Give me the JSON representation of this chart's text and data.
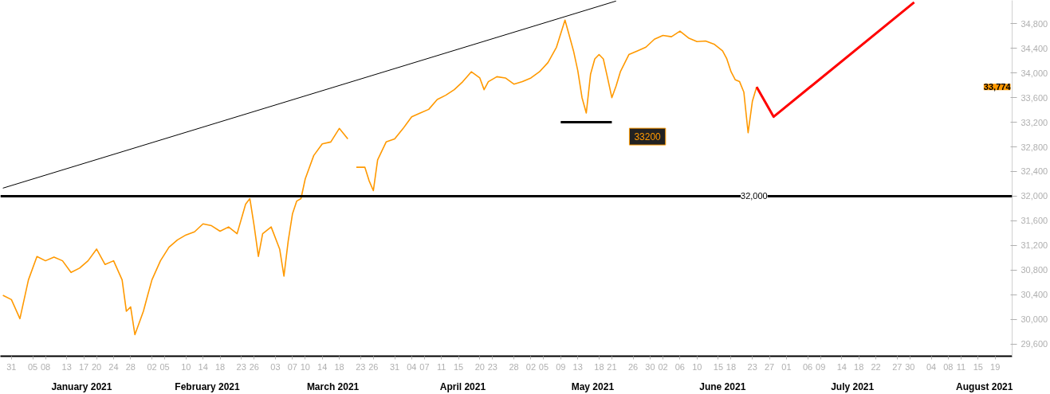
{
  "chart_data": {
    "type": "line",
    "xlim": [
      "2020-12-28T10:00",
      "2021-08-23T00:00"
    ],
    "ylim": [
      29400,
      35180
    ],
    "yticks": [
      {
        "value": 29600,
        "label": "29,600"
      },
      {
        "value": 30000,
        "label": "30,000"
      },
      {
        "value": 30400,
        "label": "30,400"
      },
      {
        "value": 30800,
        "label": "30,800"
      },
      {
        "value": 31200,
        "label": "31,200"
      },
      {
        "value": 31600,
        "label": "31,600"
      },
      {
        "value": 32000,
        "label": "32,000"
      },
      {
        "value": 32400,
        "label": "32,400"
      },
      {
        "value": 32800,
        "label": "32,800"
      },
      {
        "value": 33200,
        "label": "33,200"
      },
      {
        "value": 33600,
        "label": "33,600"
      },
      {
        "value": 34000,
        "label": "34,000"
      },
      {
        "value": 34400,
        "label": "34,400"
      },
      {
        "value": 34800,
        "label": "34,800"
      }
    ],
    "xticks": [
      {
        "value": "2020-12-31",
        "label": "31"
      },
      {
        "value": "2021-01-05",
        "label": "05"
      },
      {
        "value": "2021-01-08",
        "label": "08"
      },
      {
        "value": "2021-01-13",
        "label": "13"
      },
      {
        "value": "2021-01-17",
        "label": "17"
      },
      {
        "value": "2021-01-20",
        "label": "20"
      },
      {
        "value": "2021-01-24",
        "label": "24"
      },
      {
        "value": "2021-01-28",
        "label": "28"
      },
      {
        "value": "2021-02-02",
        "label": "02"
      },
      {
        "value": "2021-02-05",
        "label": "05"
      },
      {
        "value": "2021-02-10",
        "label": "10"
      },
      {
        "value": "2021-02-14",
        "label": "14"
      },
      {
        "value": "2021-02-18",
        "label": "18"
      },
      {
        "value": "2021-02-23",
        "label": "23"
      },
      {
        "value": "2021-02-26",
        "label": "26"
      },
      {
        "value": "2021-03-03",
        "label": "03"
      },
      {
        "value": "2021-03-07",
        "label": "07"
      },
      {
        "value": "2021-03-10",
        "label": "10"
      },
      {
        "value": "2021-03-14",
        "label": "14"
      },
      {
        "value": "2021-03-18",
        "label": "18"
      },
      {
        "value": "2021-03-23",
        "label": "23"
      },
      {
        "value": "2021-03-26",
        "label": "26"
      },
      {
        "value": "2021-03-31",
        "label": "31"
      },
      {
        "value": "2021-04-04",
        "label": "04"
      },
      {
        "value": "2021-04-07",
        "label": "07"
      },
      {
        "value": "2021-04-11",
        "label": "11"
      },
      {
        "value": "2021-04-15",
        "label": "15"
      },
      {
        "value": "2021-04-20",
        "label": "20"
      },
      {
        "value": "2021-04-23",
        "label": "23"
      },
      {
        "value": "2021-04-28",
        "label": "28"
      },
      {
        "value": "2021-05-02",
        "label": "02"
      },
      {
        "value": "2021-05-05",
        "label": "05"
      },
      {
        "value": "2021-05-09",
        "label": "09"
      },
      {
        "value": "2021-05-13",
        "label": "13"
      },
      {
        "value": "2021-05-18",
        "label": "18"
      },
      {
        "value": "2021-05-21",
        "label": "21"
      },
      {
        "value": "2021-05-26",
        "label": "26"
      },
      {
        "value": "2021-05-30",
        "label": "30"
      },
      {
        "value": "2021-06-02",
        "label": "02"
      },
      {
        "value": "2021-06-06",
        "label": "06"
      },
      {
        "value": "2021-06-10",
        "label": "10"
      },
      {
        "value": "2021-06-15",
        "label": "15"
      },
      {
        "value": "2021-06-18",
        "label": "18"
      },
      {
        "value": "2021-06-23",
        "label": "23"
      },
      {
        "value": "2021-06-27",
        "label": "27"
      },
      {
        "value": "2021-07-01",
        "label": "01"
      },
      {
        "value": "2021-07-06",
        "label": "06"
      },
      {
        "value": "2021-07-09",
        "label": "09"
      },
      {
        "value": "2021-07-14",
        "label": "14"
      },
      {
        "value": "2021-07-18",
        "label": "18"
      },
      {
        "value": "2021-07-22",
        "label": "22"
      },
      {
        "value": "2021-07-27",
        "label": "27"
      },
      {
        "value": "2021-07-30",
        "label": "30"
      },
      {
        "value": "2021-08-04",
        "label": "04"
      },
      {
        "value": "2021-08-08",
        "label": "08"
      },
      {
        "value": "2021-08-11",
        "label": "11"
      },
      {
        "value": "2021-08-15",
        "label": "15"
      },
      {
        "value": "2021-08-19",
        "label": "19"
      }
    ],
    "series": [
      {
        "color": "#ff9900",
        "x": [
          "2020-12-29",
          "2020-12-31",
          "2021-01-02",
          "2021-01-04",
          "2021-01-06",
          "2021-01-08",
          "2021-01-10",
          "2021-01-12",
          "2021-01-14",
          "2021-01-16",
          "2021-01-18",
          "2021-01-20",
          "2021-01-22",
          "2021-01-24",
          "2021-01-26",
          "2021-01-27",
          "2021-01-28",
          "2021-01-29",
          "2021-01-30",
          "2021-01-31",
          "2021-02-01",
          "2021-02-02",
          "2021-02-04",
          "2021-02-06",
          "2021-02-08",
          "2021-02-10",
          "2021-02-12",
          "2021-02-14",
          "2021-02-16",
          "2021-02-18",
          "2021-02-20",
          "2021-02-22",
          "2021-02-24",
          "2021-02-25",
          "2021-02-26",
          "2021-02-27",
          "2021-02-28",
          "2021-03-02",
          "2021-03-04",
          "2021-03-05",
          "2021-03-06",
          "2021-03-07",
          "2021-03-08",
          "2021-03-09",
          "2021-03-10",
          "2021-03-12",
          "2021-03-14",
          "2021-03-16",
          "2021-03-18",
          "2021-03-20",
          "2021-03-21",
          "2021-03-22",
          "2021-03-24",
          "2021-03-25",
          "2021-03-26",
          "2021-03-27",
          "2021-03-29",
          "2021-03-31",
          "2021-04-02",
          "2021-04-04",
          "2021-04-06",
          "2021-04-08",
          "2021-04-10",
          "2021-04-12",
          "2021-04-14",
          "2021-04-16",
          "2021-04-18",
          "2021-04-20",
          "2021-04-21",
          "2021-04-22",
          "2021-04-24",
          "2021-04-26",
          "2021-04-28",
          "2021-04-30",
          "2021-05-02",
          "2021-05-04",
          "2021-05-06",
          "2021-05-08",
          "2021-05-10",
          "2021-05-11",
          "2021-05-12",
          "2021-05-13",
          "2021-05-14",
          "2021-05-15",
          "2021-05-16",
          "2021-05-17",
          "2021-05-18",
          "2021-05-19",
          "2021-05-20",
          "2021-05-21",
          "2021-05-22",
          "2021-05-23",
          "2021-05-25",
          "2021-05-27",
          "2021-05-29",
          "2021-05-31",
          "2021-06-02",
          "2021-06-04",
          "2021-06-06",
          "2021-06-08",
          "2021-06-10",
          "2021-06-12",
          "2021-06-14",
          "2021-06-16",
          "2021-06-17",
          "2021-06-18",
          "2021-06-19",
          "2021-06-20",
          "2021-06-21",
          "2021-06-22",
          "2021-06-23",
          "2021-06-24"
        ],
        "values": [
          30390,
          30320,
          30010,
          30640,
          31020,
          30950,
          31010,
          30950,
          30760,
          30830,
          30950,
          31140,
          30890,
          30950,
          30640,
          30130,
          30200,
          29750,
          29940,
          30130,
          30390,
          30640,
          30950,
          31170,
          31290,
          31370,
          31420,
          31550,
          31520,
          31430,
          31500,
          31390,
          31870,
          31960,
          31520,
          31020,
          31390,
          31500,
          31140,
          30700,
          31270,
          31710,
          31920,
          31960,
          32280,
          32660,
          32850,
          32880,
          33100,
          32930,
          null,
          32470,
          32470,
          32250,
          32090,
          32590,
          32880,
          32930,
          33100,
          33290,
          33350,
          33410,
          33570,
          33640,
          33730,
          33860,
          34020,
          33920,
          33730,
          33860,
          33940,
          33920,
          33820,
          33860,
          33920,
          34020,
          34170,
          34420,
          34860,
          34610,
          34360,
          34040,
          33600,
          33350,
          33980,
          34230,
          34300,
          34230,
          33920,
          33600,
          33790,
          34020,
          34300,
          34360,
          34420,
          34550,
          34610,
          34590,
          34680,
          34570,
          34510,
          34520,
          34470,
          34360,
          34230,
          34020,
          33890,
          33860,
          33690,
          33030,
          33540,
          33774
        ]
      },
      {
        "color": "#ff0000",
        "x": [
          "2021-06-24",
          "2021-06-28",
          "2021-07-31"
        ],
        "values": [
          33774,
          33290,
          35150
        ]
      },
      {
        "color": "#000000",
        "x": [
          "2020-12-29",
          "2021-05-22"
        ],
        "values": [
          32130,
          35170
        ]
      },
      {
        "color": "#000000",
        "x": [
          "2021-05-09",
          "2021-05-21"
        ],
        "values": [
          33200,
          33200
        ]
      }
    ],
    "ref_lines": [
      {
        "axis": "y",
        "value": 32000,
        "label": "32,000",
        "color": "#000000"
      }
    ],
    "annotations": [
      {
        "text": "33200",
        "x": "2021-05-21",
        "y": 33200
      },
      "33,774",
      "January 2021",
      "February 2021",
      "March 2021",
      "April 2021",
      "May 2021",
      "June 2021",
      "July 2021",
      "August 2021"
    ]
  }
}
